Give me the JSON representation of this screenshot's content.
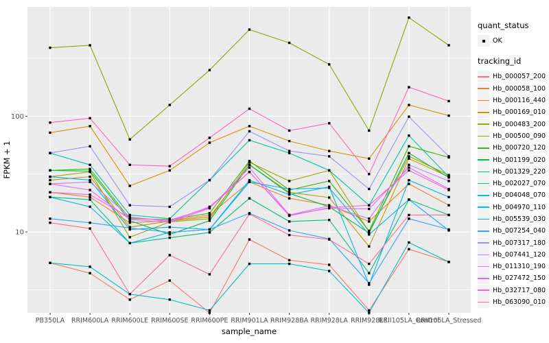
{
  "chart_data": {
    "type": "line",
    "title": "",
    "xlabel": "sample_name",
    "ylabel": "FPKM + 1",
    "y_scale": "log10",
    "ylim": [
      2,
      880
    ],
    "y_major_ticks": [
      10,
      100
    ],
    "y_minor_gridlines": [
      3.162,
      31.62,
      316.2
    ],
    "grid": "on",
    "legend_position": "right",
    "point_marker": "small-black-square",
    "categories": [
      "PB350LA",
      "RRIM600LA",
      "RRIM600LE",
      "RRIM600SE",
      "RRIM600PE",
      "RRIM901LA",
      "RRIM928BA",
      "RRIM928LA",
      "RRIM928LE",
      "RRII105LA_Control",
      "RRII105LA_Stressed"
    ],
    "series": [
      {
        "name": "Hb_000057_200",
        "color": "#F8766D",
        "values": [
          5.4,
          4.4,
          2.6,
          3.8,
          2.0,
          8.6,
          5.7,
          5.2,
          2.1,
          7.1,
          5.5
        ]
      },
      {
        "name": "Hb_000058_100",
        "color": "#EA8331",
        "values": [
          22,
          20,
          12,
          12.5,
          14,
          27,
          19.5,
          17,
          12.3,
          26,
          17
        ]
      },
      {
        "name": "Hb_000116_440",
        "color": "#D89000",
        "values": [
          72,
          82,
          25,
          34,
          59,
          82,
          61,
          50,
          43,
          125,
          101
        ]
      },
      {
        "name": "Hb_000169_010",
        "color": "#C09B00",
        "values": [
          28,
          30,
          11,
          12.4,
          13.5,
          38,
          22,
          19.8,
          7.5,
          43,
          30
        ]
      },
      {
        "name": "Hb_000483_200",
        "color": "#A3A500",
        "values": [
          30,
          33,
          9,
          12.2,
          13,
          40,
          27.5,
          34,
          10,
          45,
          31
        ]
      },
      {
        "name": "Hb_000500_090",
        "color": "#7CAE00",
        "values": [
          390,
          410,
          63,
          125,
          250,
          560,
          430,
          280,
          75,
          710,
          410
        ]
      },
      {
        "name": "Hb_000720_120",
        "color": "#39B600",
        "values": [
          34,
          35,
          13,
          12.8,
          14.5,
          41,
          23,
          27.5,
          10.2,
          55,
          44
        ]
      },
      {
        "name": "Hb_001199_020",
        "color": "#00BB4E",
        "values": [
          34,
          33.5,
          12.5,
          9.5,
          12.5,
          38,
          21.5,
          16.5,
          9.8,
          48,
          29.5
        ]
      },
      {
        "name": "Hb_001329_220",
        "color": "#00BF7D",
        "values": [
          20,
          19,
          8,
          8.9,
          9.9,
          19.5,
          12.3,
          12.7,
          4.4,
          19,
          14
        ]
      },
      {
        "name": "Hb_002027_070",
        "color": "#00C1A3",
        "values": [
          48,
          38,
          14,
          13,
          28,
          62,
          48,
          34,
          17,
          68,
          30
        ]
      },
      {
        "name": "Hb_004048_070",
        "color": "#00BFC4",
        "values": [
          5.4,
          5.0,
          2.9,
          2.6,
          2.1,
          5.3,
          5.3,
          4.6,
          2.0,
          8.1,
          5.5
        ]
      },
      {
        "name": "Hb_004970_110",
        "color": "#00BAE0",
        "values": [
          20,
          16.5,
          8,
          9.9,
          10.5,
          28,
          21,
          24.5,
          3.5,
          28,
          20
        ]
      },
      {
        "name": "Hb_005539_030",
        "color": "#00B0F6",
        "values": [
          30,
          28,
          10.5,
          11,
          10.5,
          27,
          23.5,
          24,
          9.5,
          19,
          10.3
        ]
      },
      {
        "name": "Hb_007254_040",
        "color": "#35A2FF",
        "values": [
          13,
          12,
          10.8,
          9.9,
          10.5,
          14.5,
          10.3,
          8.7,
          3.6,
          13,
          10.5
        ]
      },
      {
        "name": "Hb_007317_180",
        "color": "#9590FF",
        "values": [
          48,
          55,
          17,
          16.5,
          28,
          74,
          50,
          45,
          23.5,
          99,
          45
        ]
      },
      {
        "name": "Hb_007441_120",
        "color": "#C77CFF",
        "values": [
          26,
          27,
          13.5,
          12.3,
          16.5,
          33,
          14,
          16.8,
          13,
          38,
          27.5
        ]
      },
      {
        "name": "Hb_011310_190",
        "color": "#E76BF3",
        "values": [
          26,
          23,
          12.8,
          12.1,
          16,
          36,
          14,
          16,
          15.8,
          36,
          23.5
        ]
      },
      {
        "name": "Hb_027472_150",
        "color": "#FA62DB",
        "values": [
          22,
          21,
          13.2,
          12.6,
          16.2,
          33,
          13.8,
          16.2,
          17,
          34,
          23
        ]
      },
      {
        "name": "Hb_032717_080",
        "color": "#FF62BC",
        "values": [
          88,
          96,
          38,
          37,
          65,
          116,
          75,
          87,
          31.6,
          178,
          135
        ]
      },
      {
        "name": "Hb_063090_010",
        "color": "#FF6A98",
        "values": [
          12,
          10.7,
          2.9,
          6.3,
          4.3,
          14.3,
          9.4,
          8.6,
          5.3,
          14,
          14
        ]
      }
    ],
    "legend": {
      "quant_status_title": "quant_status",
      "ok_label": "OK",
      "tracking_title": "tracking_id"
    }
  },
  "theme": {
    "panel_bg": "#EBEBEB",
    "gridline": "#FFFFFF",
    "tick_label_color": "#4D4D4D",
    "axis_title_color": "#000000",
    "point_color": "#000000",
    "legend_key_bg": "#F2F2F2"
  }
}
